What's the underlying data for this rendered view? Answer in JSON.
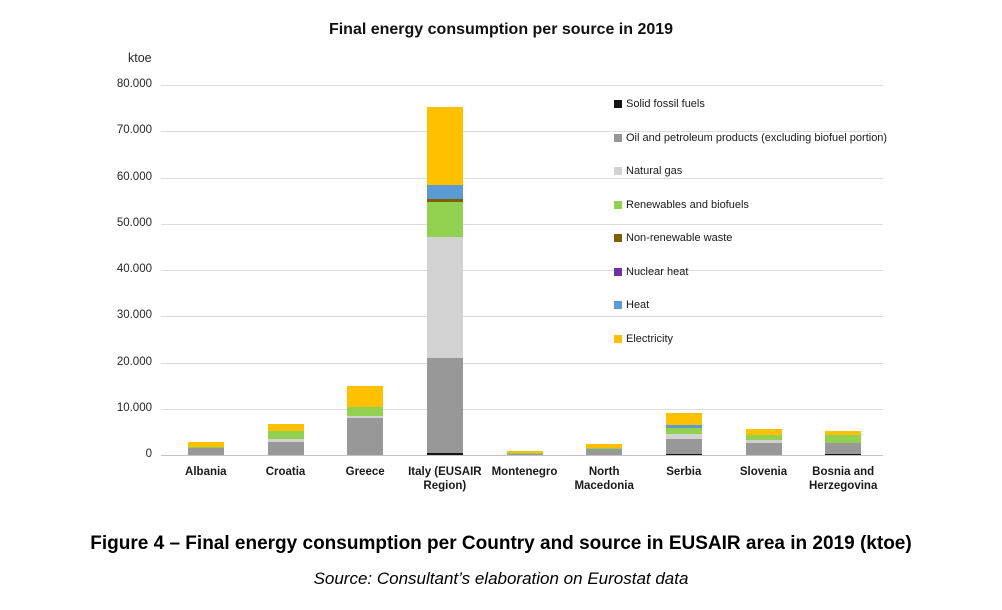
{
  "chart": {
    "title": "Final energy consumption per source in 2019",
    "unit_label": "ktoe"
  },
  "caption": "Figure 4 – Final energy consumption per Country and source in EUSAIR area in 2019 (ktoe)",
  "source": "Source: Consultant’s elaboration on Eurostat data",
  "chart_data": {
    "type": "bar",
    "stacked": true,
    "title": "Final energy consumption per source in 2019",
    "ylabel": "ktoe",
    "ylim": [
      0,
      80000
    ],
    "ytick_values": [
      0,
      10000,
      20000,
      30000,
      40000,
      50000,
      60000,
      70000,
      80000
    ],
    "ytick_labels": [
      "0",
      "10.000",
      "20.000",
      "30.000",
      "40.000",
      "50.000",
      "60.000",
      "70.000",
      "80.000"
    ],
    "grid": true,
    "legend_position": "right-overlay",
    "categories": [
      "Albania",
      "Croatia",
      "Greece",
      "Italy (EUSAIR Region)",
      "Montenegro",
      "North Macedonia",
      "Serbia",
      "Slovenia",
      "Bosnia and Herzegovina"
    ],
    "series": [
      {
        "name": "Solid fossil fuels",
        "color": "#141414",
        "values": [
          0,
          0,
          0,
          400,
          0,
          0,
          300,
          0,
          250
        ]
      },
      {
        "name": "Oil and petroleum products (excluding biofuel portion)",
        "color": "#989898",
        "values": [
          1500,
          2800,
          8000,
          20600,
          300,
          1300,
          3200,
          2600,
          2300
        ]
      },
      {
        "name": "Natural gas",
        "color": "#D2D2D2",
        "values": [
          0,
          650,
          500,
          26200,
          0,
          0,
          1100,
          650,
          0
        ]
      },
      {
        "name": "Renewables and biofuels",
        "color": "#92D050",
        "values": [
          300,
          1700,
          1800,
          7600,
          150,
          200,
          1300,
          1100,
          1700
        ]
      },
      {
        "name": "Non-renewable waste",
        "color": "#7F6000",
        "values": [
          0,
          0,
          0,
          500,
          0,
          0,
          0,
          0,
          0
        ]
      },
      {
        "name": "Nuclear heat",
        "color": "#7030A0",
        "values": [
          0,
          0,
          0,
          0,
          0,
          0,
          0,
          0,
          0
        ]
      },
      {
        "name": "Heat",
        "color": "#5B9BD5",
        "values": [
          0,
          0,
          0,
          3000,
          0,
          0,
          650,
          0,
          0
        ]
      },
      {
        "name": "Electricity",
        "color": "#FFC000",
        "values": [
          1000,
          1500,
          4600,
          16900,
          500,
          900,
          2600,
          1300,
          900
        ]
      }
    ]
  }
}
